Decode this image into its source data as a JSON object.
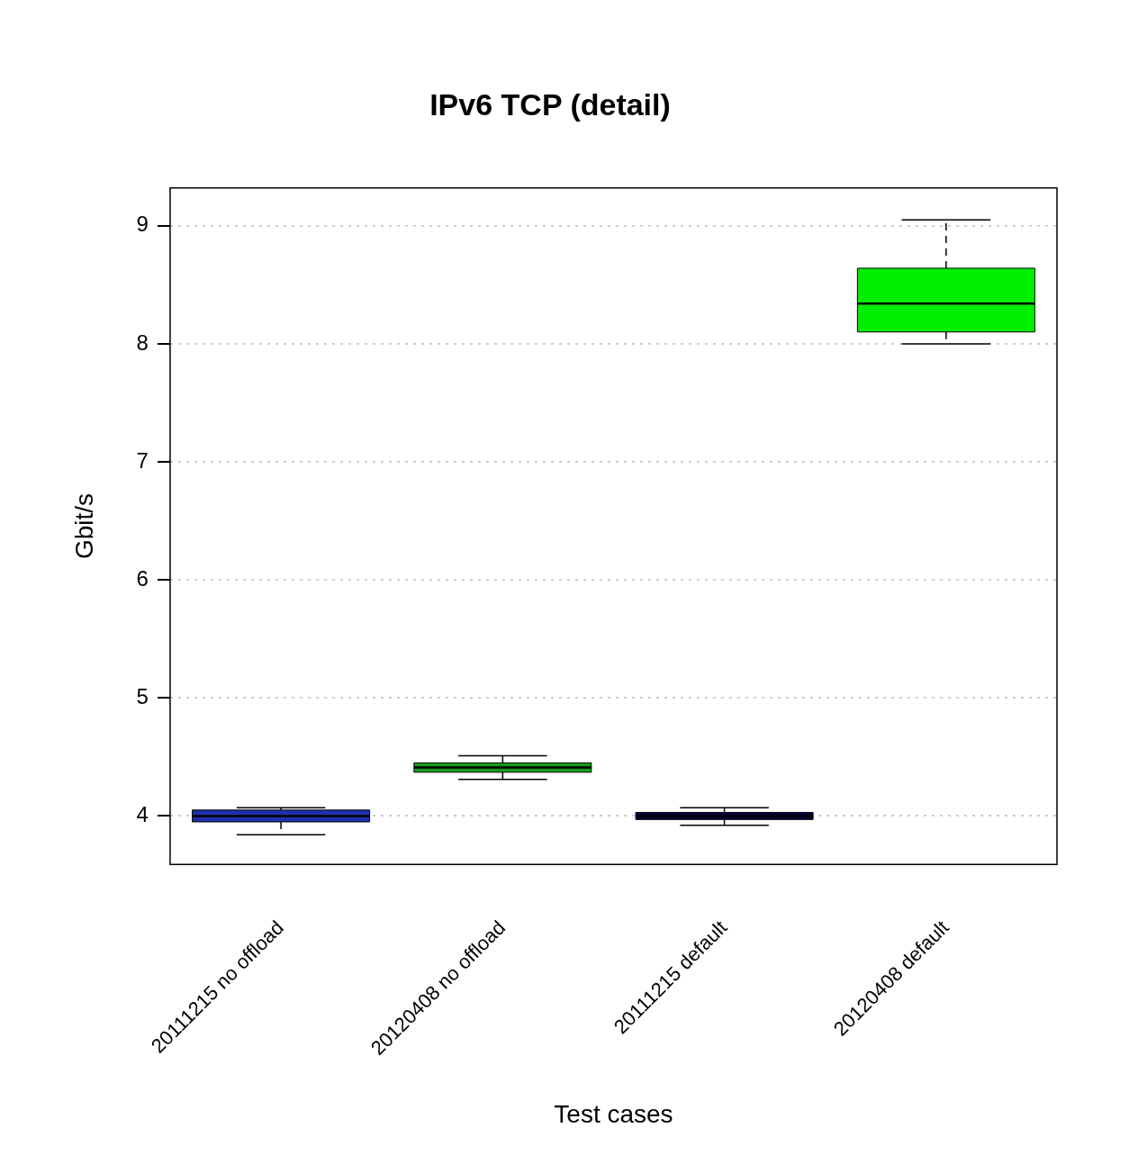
{
  "chart_data": {
    "type": "box",
    "title": "IPv6 TCP (detail)",
    "xlabel": "Test cases",
    "ylabel": "Gbit/s",
    "categories": [
      "20111215 no offload",
      "20120408 no offload",
      "20111215 default",
      "20120408 default"
    ],
    "colors": [
      "#2030b0",
      "#1a9a1a",
      "#000040",
      "#00ee00"
    ],
    "boxes": [
      {
        "low": 3.84,
        "q1": 3.95,
        "median": 4.0,
        "q3": 4.05,
        "high": 4.07
      },
      {
        "low": 4.31,
        "q1": 4.37,
        "median": 4.41,
        "q3": 4.45,
        "high": 4.51
      },
      {
        "low": 3.92,
        "q1": 3.97,
        "median": 4.0,
        "q3": 4.03,
        "high": 4.07
      },
      {
        "low": 8.0,
        "q1": 8.1,
        "median": 8.34,
        "q3": 8.64,
        "high": 9.05
      }
    ],
    "ylim": [
      3.59,
      9.32
    ],
    "yticks": [
      4,
      5,
      6,
      7,
      8,
      9
    ],
    "grid": "y"
  }
}
